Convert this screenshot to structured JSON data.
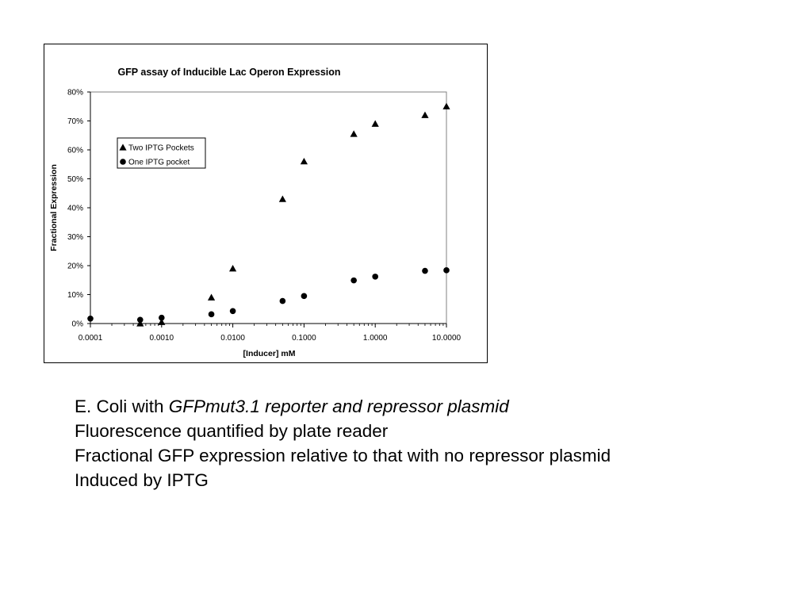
{
  "chart_data": {
    "type": "scatter",
    "title": "GFP assay of Inducible Lac Operon Expression",
    "xlabel": "[Inducer] mM",
    "ylabel": "Fractional Expression",
    "x_scale": "log",
    "xlim": [
      0.0001,
      10
    ],
    "ylim": [
      0,
      0.8
    ],
    "x_ticks": [
      "0.0001",
      "0.0010",
      "0.0100",
      "0.1000",
      "1.0000",
      "10.0000"
    ],
    "y_ticks": [
      "0%",
      "10%",
      "20%",
      "30%",
      "40%",
      "50%",
      "60%",
      "70%",
      "80%"
    ],
    "grid": false,
    "legend_position": "upper-left inside plot",
    "series": [
      {
        "name": "Two IPTG Pockets",
        "marker": "triangle",
        "color": "#000000",
        "points": [
          {
            "x": 0.0005,
            "y": 0.0
          },
          {
            "x": 0.001,
            "y": 0.005
          },
          {
            "x": 0.005,
            "y": 0.09
          },
          {
            "x": 0.01,
            "y": 0.19
          },
          {
            "x": 0.05,
            "y": 0.43
          },
          {
            "x": 0.1,
            "y": 0.56
          },
          {
            "x": 0.5,
            "y": 0.655
          },
          {
            "x": 1,
            "y": 0.69
          },
          {
            "x": 5,
            "y": 0.72
          },
          {
            "x": 10,
            "y": 0.75
          }
        ]
      },
      {
        "name": "One IPTG pocket",
        "marker": "circle",
        "color": "#000000",
        "points": [
          {
            "x": 0.0001,
            "y": 0.017
          },
          {
            "x": 0.0005,
            "y": 0.013
          },
          {
            "x": 0.001,
            "y": 0.02
          },
          {
            "x": 0.005,
            "y": 0.032
          },
          {
            "x": 0.01,
            "y": 0.043
          },
          {
            "x": 0.05,
            "y": 0.078
          },
          {
            "x": 0.1,
            "y": 0.095
          },
          {
            "x": 0.5,
            "y": 0.149
          },
          {
            "x": 1,
            "y": 0.162
          },
          {
            "x": 5,
            "y": 0.182
          },
          {
            "x": 10,
            "y": 0.184
          }
        ]
      }
    ]
  },
  "caption": {
    "line1_prefix": "E. Coli with ",
    "line1_italic": "GFPmut3.1 reporter and repressor plasmid",
    "line2": "Fluorescence quantified by plate reader",
    "line3": "Fractional GFP expression relative to that with no repressor plasmid",
    "line4": "Induced by IPTG"
  }
}
